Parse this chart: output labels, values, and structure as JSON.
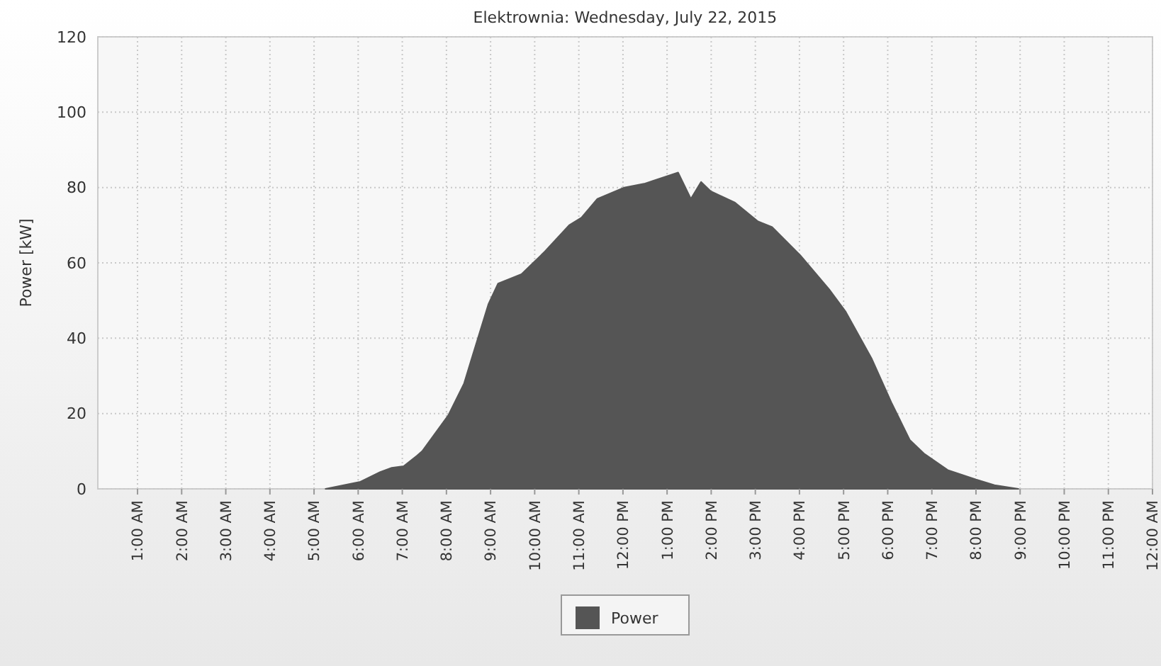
{
  "chart_data": {
    "type": "area",
    "title": "Elektrownia: Wednesday, July 22, 2015",
    "ylabel": "Power [kW]",
    "x": [
      5.26,
      6.05,
      6.5,
      6.76,
      7.03,
      7.33,
      7.45,
      8.04,
      8.4,
      8.6,
      8.95,
      9.17,
      9.7,
      10.23,
      10.78,
      11.06,
      11.42,
      12.03,
      12.48,
      13.25,
      13.54,
      13.77,
      13.99,
      14.54,
      15.06,
      15.38,
      16.02,
      16.67,
      17.05,
      17.64,
      18.08,
      18.5,
      18.82,
      19.36,
      20,
      20.42,
      20.96
    ],
    "series": [
      {
        "name": "Power",
        "color": "#555555",
        "values": [
          0,
          1.9,
          4.5,
          5.6,
          6,
          8.8,
          10,
          19.5,
          28,
          35.7,
          49,
          54.5,
          57,
          63,
          70,
          72,
          77,
          80,
          81,
          84,
          77,
          81.5,
          79,
          76,
          71,
          69.5,
          62,
          53,
          47,
          34.5,
          23,
          13,
          9.4,
          5,
          2.5,
          1,
          0
        ]
      }
    ],
    "xlim": [
      0.1,
      24
    ],
    "xticks": [
      {
        "value": 1,
        "label": "1:00 AM"
      },
      {
        "value": 2,
        "label": "2:00 AM"
      },
      {
        "value": 3,
        "label": "3:00 AM"
      },
      {
        "value": 4,
        "label": "4:00 AM"
      },
      {
        "value": 5,
        "label": "5:00 AM"
      },
      {
        "value": 6,
        "label": "6:00 AM"
      },
      {
        "value": 7,
        "label": "7:00 AM"
      },
      {
        "value": 8,
        "label": "8:00 AM"
      },
      {
        "value": 9,
        "label": "9:00 AM"
      },
      {
        "value": 10,
        "label": "10:00 AM"
      },
      {
        "value": 11,
        "label": "11:00 AM"
      },
      {
        "value": 12,
        "label": "12:00 PM"
      },
      {
        "value": 13,
        "label": "1:00 PM"
      },
      {
        "value": 14,
        "label": "2:00 PM"
      },
      {
        "value": 15,
        "label": "3:00 PM"
      },
      {
        "value": 16,
        "label": "4:00 PM"
      },
      {
        "value": 17,
        "label": "5:00 PM"
      },
      {
        "value": 18,
        "label": "6:00 PM"
      },
      {
        "value": 19,
        "label": "7:00 PM"
      },
      {
        "value": 20,
        "label": "8:00 PM"
      },
      {
        "value": 21,
        "label": "9:00 PM"
      },
      {
        "value": 22,
        "label": "10:00 PM"
      },
      {
        "value": 23,
        "label": "11:00 PM"
      },
      {
        "value": 24,
        "label": "12:00 AM"
      }
    ],
    "ylim": [
      0,
      120
    ],
    "yticks": [
      0,
      20,
      40,
      60,
      80,
      100,
      120
    ],
    "grid": true,
    "legend": "bottom"
  }
}
